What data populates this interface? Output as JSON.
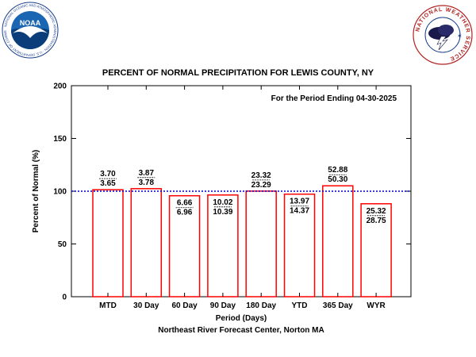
{
  "logos": {
    "noaa": {
      "ring_text": "NATIONAL OCEANIC AND ATMOSPHERIC ADMINISTRATION · U.S. DEPARTMENT OF COMMERCE",
      "center_text": "NOAA",
      "icon": "noaa-logo"
    },
    "nws": {
      "ring_text": "NATIONAL WEATHER SERVICE",
      "icon": "nws-logo"
    }
  },
  "colors": {
    "bar_stroke": "#ff0000",
    "normal_line": "#0000cc",
    "axis": "#000000"
  },
  "chart_data": {
    "type": "bar",
    "title": "PERCENT OF NORMAL PRECIPITATION FOR LEWIS COUNTY, NY",
    "subtitle": "For the Period Ending 04-30-2025",
    "xlabel": "Period (Days)",
    "ylabel": "Percent of Normal (%)",
    "footer": "Northeast River Forecast Center, Norton MA",
    "ylim": [
      0,
      200
    ],
    "yticks": [
      "0",
      "50",
      "100",
      "150",
      "200"
    ],
    "normal_line": 100,
    "grid": false,
    "categories": [
      "MTD",
      "30 Day",
      "60 Day",
      "90 Day",
      "180 Day",
      "YTD",
      "365 Day",
      "WYR"
    ],
    "values": [
      101.4,
      102.4,
      95.7,
      96.4,
      100.1,
      97.2,
      105.1,
      88.1
    ],
    "observed": [
      "3.70",
      "3.87",
      "6.66",
      "10.02",
      "23.32",
      "13.97",
      "52.88",
      "25.32"
    ],
    "normal": [
      "3.65",
      "3.78",
      "6.96",
      "10.39",
      "23.29",
      "14.37",
      "50.30",
      "28.75"
    ]
  }
}
